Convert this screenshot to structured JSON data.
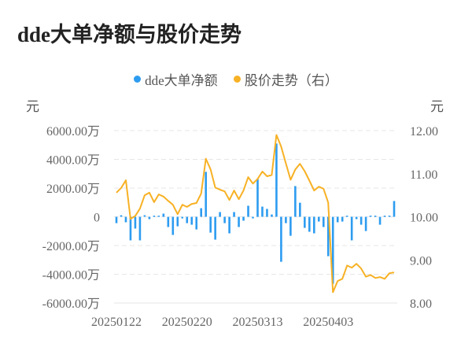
{
  "title": "dde大单净额与股价走势",
  "legend": [
    {
      "label": "dde大单净额",
      "color": "#2d9cf0"
    },
    {
      "label": "股价走势（右）",
      "color": "#f7b125"
    }
  ],
  "axes": {
    "left_unit": "元",
    "right_unit": "元",
    "left_ticks": [
      "6000.00万",
      "4000.00万",
      "2000.00万",
      "0",
      "-2000.00万",
      "-4000.00万",
      "-6000.00万"
    ],
    "right_ticks": [
      "12.00",
      "11.00",
      "10.00",
      "9.00",
      "8.00"
    ],
    "x_ticks": [
      "20250122",
      "20250220",
      "20250313",
      "20250403"
    ]
  },
  "colors": {
    "bar": "#2d9cf0",
    "line": "#f7b125",
    "grid": "#e6e6e6",
    "axis_text": "#666666"
  },
  "chart_data": {
    "type": "bar+line",
    "title": "dde大单净额与股价走势",
    "xlabel": "",
    "ylabel": "元",
    "ylabel_right": "元",
    "ylim": [
      -6000,
      6000
    ],
    "ylim_right": [
      8.0,
      12.0
    ],
    "y_unit": "万元",
    "grid": true,
    "legend_position": "top",
    "x_tick_labels": {
      "0": "20250122",
      "15": "20250220",
      "30": "20250313",
      "45": "20250403"
    },
    "series": [
      {
        "name": "dde大单净额",
        "type": "bar",
        "axis": "left",
        "values": [
          -440,
          110,
          -380,
          -1640,
          -820,
          -1640,
          110,
          -160,
          50,
          50,
          220,
          -710,
          -1260,
          -660,
          -110,
          -440,
          -550,
          -880,
          600,
          3130,
          -1100,
          -1590,
          330,
          -440,
          -1150,
          330,
          -710,
          -270,
          770,
          -110,
          2630,
          710,
          550,
          160,
          5100,
          -3130,
          -440,
          -1320,
          2140,
          980,
          -770,
          -1040,
          -1150,
          -330,
          -710,
          -2740,
          -4660,
          -380,
          -330,
          60,
          -1640,
          -160,
          -550,
          -990,
          30,
          30,
          -550,
          30,
          60,
          1100
        ]
      },
      {
        "name": "股价走势（右）",
        "type": "line",
        "axis": "right",
        "values": [
          10.56,
          10.67,
          10.85,
          9.95,
          10.02,
          10.19,
          10.5,
          10.56,
          10.34,
          10.52,
          10.47,
          10.37,
          10.28,
          10.06,
          10.28,
          10.23,
          10.3,
          10.32,
          10.54,
          11.35,
          11.1,
          10.68,
          10.63,
          10.59,
          10.39,
          10.61,
          10.41,
          10.61,
          10.92,
          10.77,
          10.88,
          11.05,
          10.94,
          10.97,
          11.9,
          11.63,
          11.24,
          10.86,
          11.1,
          11.23,
          11.06,
          10.84,
          10.61,
          10.7,
          10.65,
          10.33,
          8.25,
          8.51,
          8.56,
          8.87,
          8.82,
          8.91,
          8.8,
          8.61,
          8.65,
          8.58,
          8.6,
          8.56,
          8.69,
          8.71
        ]
      }
    ]
  }
}
